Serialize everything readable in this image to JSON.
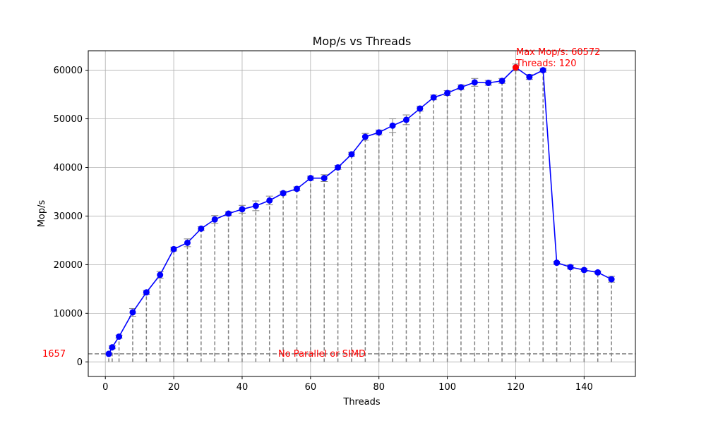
{
  "chart_data": {
    "type": "line",
    "title": "Mop/s vs Threads",
    "xlabel": "Threads",
    "ylabel": "Mop/s",
    "xlim": [
      -5,
      155
    ],
    "ylim": [
      -3000,
      64000
    ],
    "xticks": [
      0,
      20,
      40,
      60,
      80,
      100,
      120,
      140
    ],
    "yticks": [
      0,
      10000,
      20000,
      30000,
      40000,
      50000,
      60000
    ],
    "grid": true,
    "series": [
      {
        "color": "#0000ff",
        "marker": "circle",
        "x": [
          1,
          2,
          4,
          8,
          12,
          16,
          20,
          24,
          28,
          32,
          36,
          40,
          44,
          48,
          52,
          56,
          60,
          64,
          68,
          72,
          76,
          80,
          84,
          88,
          92,
          96,
          100,
          104,
          108,
          112,
          116,
          120,
          124,
          128,
          132,
          136,
          140,
          144,
          148
        ],
        "y": [
          1657,
          3000,
          5200,
          10200,
          14300,
          17900,
          23200,
          24500,
          27400,
          29300,
          30500,
          31400,
          32100,
          33200,
          34700,
          35600,
          37800,
          37800,
          40000,
          42700,
          46300,
          47200,
          48600,
          49800,
          52100,
          54400,
          55300,
          56500,
          57500,
          57400,
          57800,
          60572,
          58600,
          60000,
          20400,
          19500,
          18900,
          18400,
          17000
        ],
        "err": [
          150,
          300,
          300,
          800,
          400,
          700,
          400,
          800,
          400,
          800,
          400,
          800,
          1000,
          900,
          400,
          400,
          400,
          700,
          400,
          400,
          700,
          500,
          1400,
          1000,
          500,
          500,
          500,
          500,
          800,
          500,
          500,
          700,
          500,
          400,
          300,
          400,
          300,
          300,
          600
        ]
      }
    ],
    "baseline": {
      "value": 1657,
      "label": "1657",
      "note": "No Parallel or SIMD",
      "color": "#ff0000"
    },
    "max_point": {
      "x": 120,
      "y": 60572,
      "color": "#ff0000",
      "line1": "Max Mop/s: 60572",
      "line2": "Threads: 120"
    }
  }
}
